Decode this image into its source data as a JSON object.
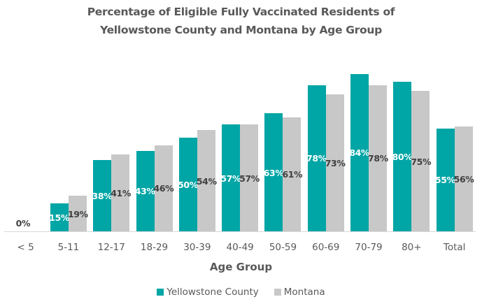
{
  "chart_data": {
    "type": "bar",
    "title": "Percentage of Eligible Fully Vaccinated Residents of Yellowstone County and Montana by Age Group",
    "title_lines": [
      "Percentage of Eligible Fully Vaccinated Residents of",
      "Yellowstone County and Montana by Age Group"
    ],
    "xlabel": "Age Group",
    "ylabel": "",
    "categories": [
      "< 5",
      "5-11",
      "12-17",
      "18-29",
      "30-39",
      "40-49",
      "50-59",
      "60-69",
      "70-79",
      "80+",
      "Total"
    ],
    "series": [
      {
        "name": "Yellowstone County",
        "color": "#00A5A5",
        "values": [
          0,
          15,
          38,
          43,
          50,
          57,
          63,
          78,
          84,
          80,
          55
        ],
        "labels": [
          "0%",
          "15%",
          "38%",
          "43%",
          "50%",
          "57%",
          "63%",
          "78%",
          "84%",
          "80%",
          "55%"
        ]
      },
      {
        "name": "Montana",
        "color": "#C8C8C8",
        "values": [
          null,
          19,
          41,
          46,
          54,
          57,
          61,
          73,
          78,
          75,
          56
        ],
        "labels": [
          "",
          "19%",
          "41%",
          "46%",
          "54%",
          "57%",
          "61%",
          "73%",
          "78%",
          "75%",
          "56%"
        ]
      }
    ],
    "ylim": [
      0,
      100
    ],
    "grid": false,
    "legend_position": "bottom",
    "value_unit": "%"
  }
}
